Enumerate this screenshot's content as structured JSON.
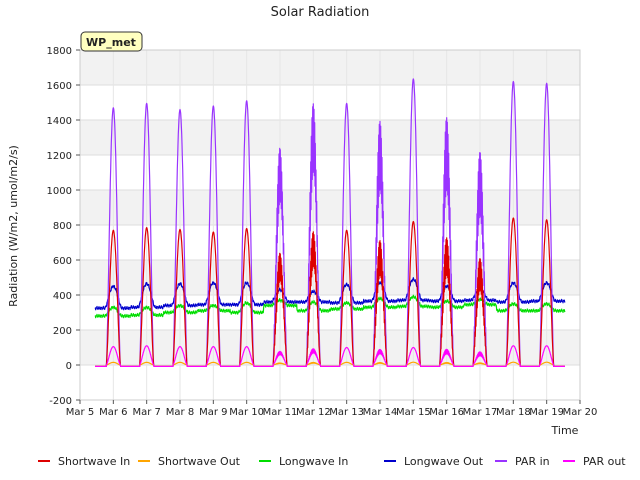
{
  "chart_data": {
    "type": "line",
    "title": "Solar Radiation",
    "xlabel": "Time",
    "ylabel": "Radiation (W/m2, umol/m2/s)",
    "badge": "WP_met",
    "ylim": [
      -200,
      1800
    ],
    "yticks": [
      -200,
      0,
      200,
      400,
      600,
      800,
      1000,
      1200,
      1400,
      1600,
      1800
    ],
    "xlim": [
      5,
      20
    ],
    "xticks": [
      {
        "v": 5,
        "label": "Mar 5"
      },
      {
        "v": 6,
        "label": "Mar 6"
      },
      {
        "v": 7,
        "label": "Mar 7"
      },
      {
        "v": 8,
        "label": "Mar 8"
      },
      {
        "v": 9,
        "label": "Mar 9"
      },
      {
        "v": 10,
        "label": "Mar 10"
      },
      {
        "v": 11,
        "label": "Mar 11"
      },
      {
        "v": 12,
        "label": "Mar 12"
      },
      {
        "v": 13,
        "label": "Mar 13"
      },
      {
        "v": 14,
        "label": "Mar 14"
      },
      {
        "v": 15,
        "label": "Mar 15"
      },
      {
        "v": 16,
        "label": "Mar 16"
      },
      {
        "v": 17,
        "label": "Mar 17"
      },
      {
        "v": 18,
        "label": "Mar 18"
      },
      {
        "v": 19,
        "label": "Mar 19"
      },
      {
        "v": 20,
        "label": "Mar 20"
      }
    ],
    "grid": true,
    "legend_position": "bottom",
    "days": [
      6,
      7,
      8,
      9,
      10,
      11,
      12,
      13,
      14,
      15,
      16,
      17,
      18,
      19
    ],
    "series": [
      {
        "name": "Shortwave In",
        "color": "#dd0000",
        "daily_peak": [
          770,
          785,
          775,
          760,
          780,
          660,
          780,
          770,
          720,
          820,
          730,
          610,
          840,
          830
        ],
        "night": 0
      },
      {
        "name": "Shortwave Out",
        "color": "#ffa500",
        "daily_peak": [
          15,
          15,
          15,
          15,
          15,
          12,
          15,
          15,
          14,
          16,
          14,
          12,
          16,
          16
        ],
        "night": 0
      },
      {
        "name": "Longwave In",
        "color": "#00dd00",
        "daily_peak": [
          330,
          330,
          340,
          340,
          355,
          370,
          360,
          355,
          380,
          390,
          365,
          375,
          350,
          350
        ],
        "night": [
          280,
          285,
          300,
          310,
          300,
          340,
          310,
          320,
          330,
          335,
          330,
          345,
          310,
          310
        ]
      },
      {
        "name": "Longwave Out",
        "color": "#0000cc",
        "daily_peak": [
          450,
          465,
          465,
          470,
          470,
          430,
          420,
          460,
          470,
          490,
          450,
          440,
          470,
          470
        ],
        "night": [
          325,
          330,
          340,
          345,
          345,
          360,
          360,
          355,
          365,
          370,
          365,
          370,
          360,
          365
        ]
      },
      {
        "name": "PAR in",
        "color": "#9933ff",
        "daily_peak": [
          1470,
          1495,
          1460,
          1480,
          1510,
          1280,
          1530,
          1495,
          1410,
          1635,
          1420,
          1220,
          1620,
          1610
        ],
        "night": 0
      },
      {
        "name": "PAR out",
        "color": "#ff00ff",
        "daily_peak": [
          105,
          110,
          105,
          105,
          105,
          80,
          95,
          100,
          90,
          100,
          90,
          75,
          110,
          110
        ],
        "night": 0
      }
    ]
  }
}
